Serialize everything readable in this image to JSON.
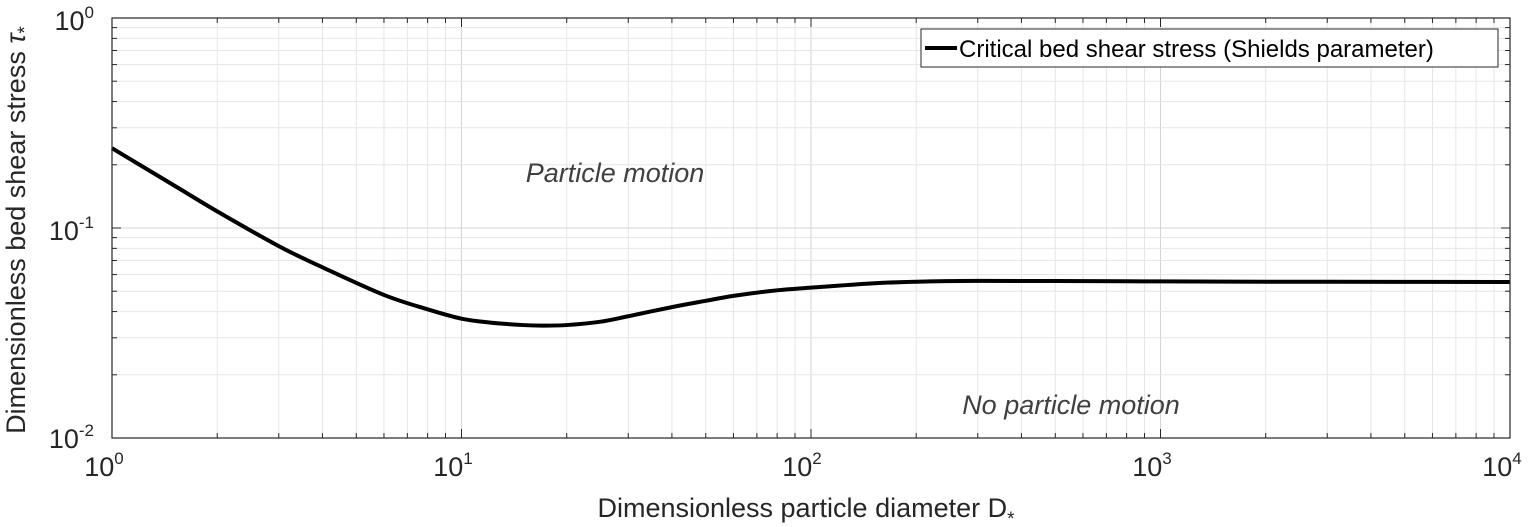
{
  "chart_data": {
    "type": "line",
    "x_scale": "log",
    "y_scale": "log",
    "xlim": [
      1,
      10000
    ],
    "ylim": [
      0.01,
      1
    ],
    "x_ticks": [
      {
        "base": "10",
        "exp": "0",
        "value": 1
      },
      {
        "base": "10",
        "exp": "1",
        "value": 10
      },
      {
        "base": "10",
        "exp": "2",
        "value": 100
      },
      {
        "base": "10",
        "exp": "3",
        "value": 1000
      },
      {
        "base": "10",
        "exp": "4",
        "value": 10000
      }
    ],
    "y_ticks": [
      {
        "base": "10",
        "exp": "0",
        "value": 1
      },
      {
        "base": "10",
        "exp": "-1",
        "value": 0.1
      },
      {
        "base": "10",
        "exp": "-2",
        "value": 0.01
      }
    ],
    "xlabel": {
      "text": "Dimensionless particle diameter  D",
      "subscript": "*"
    },
    "ylabel": {
      "text": "Dimensionless bed shear stress ",
      "symbol": "τ",
      "subscript": "*"
    },
    "grid": true,
    "legend": {
      "position": "top-right",
      "label": "Critical bed shear stress (Shields parameter)"
    },
    "annotations": {
      "upper": "Particle motion",
      "lower": "No particle motion"
    },
    "series": [
      {
        "name": "Critical bed shear stress (Shields parameter)",
        "color": "#000000",
        "x": [
          1,
          1.5,
          2,
          3,
          4,
          6,
          8,
          10,
          12,
          15,
          17,
          20,
          25,
          30,
          40,
          50,
          60,
          80,
          100,
          150,
          200,
          300,
          500,
          1000,
          2000,
          5000,
          10000
        ],
        "y": [
          0.24,
          0.16,
          0.12,
          0.082,
          0.065,
          0.048,
          0.041,
          0.037,
          0.0355,
          0.0345,
          0.0343,
          0.0345,
          0.0358,
          0.038,
          0.042,
          0.045,
          0.0475,
          0.0505,
          0.052,
          0.0545,
          0.0555,
          0.056,
          0.0559,
          0.0557,
          0.0555,
          0.0554,
          0.0553
        ]
      }
    ]
  }
}
